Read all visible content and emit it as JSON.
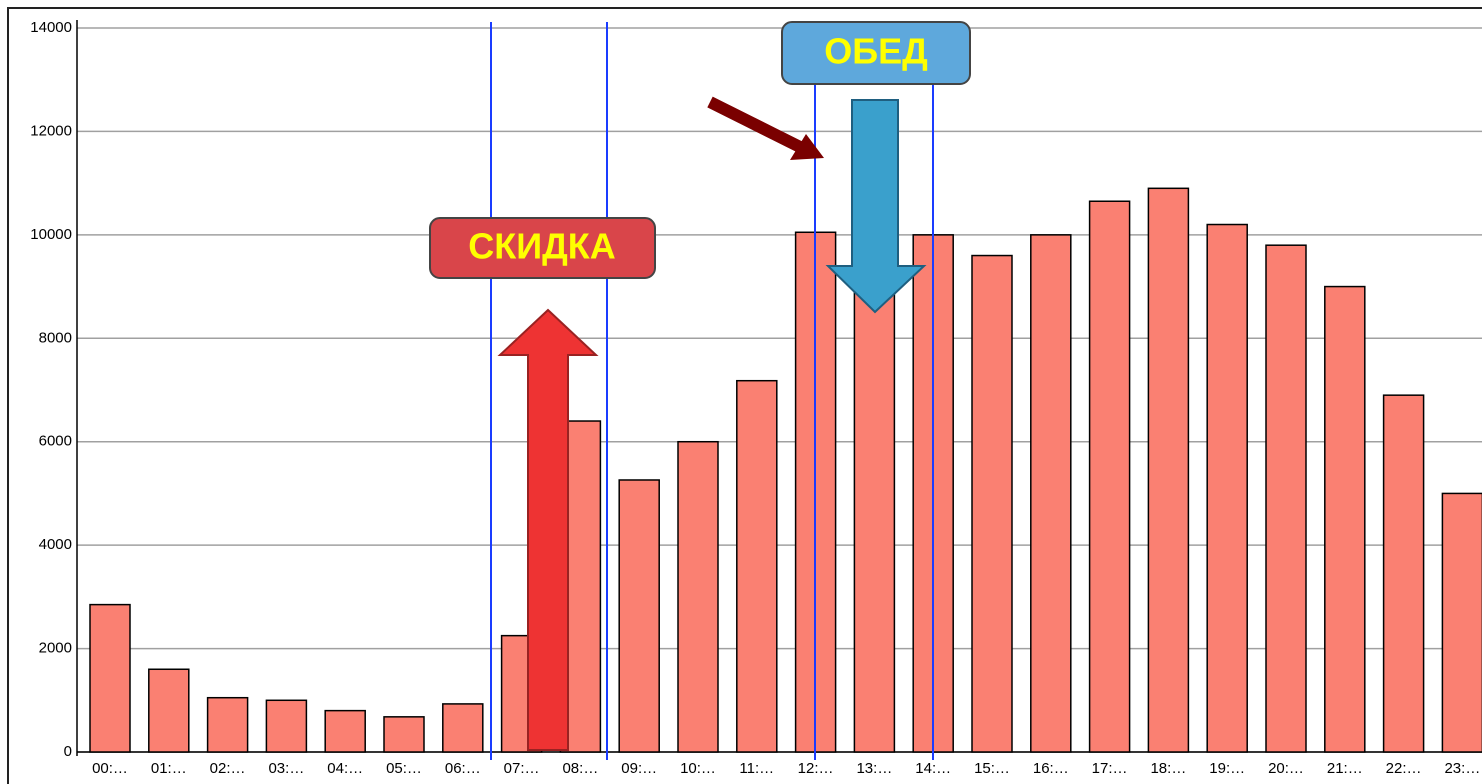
{
  "chart_data": {
    "type": "bar",
    "categories": [
      "00:…",
      "01:…",
      "02:…",
      "03:…",
      "04:…",
      "05:…",
      "06:…",
      "07:…",
      "08:…",
      "09:…",
      "10:…",
      "11:…",
      "12:…",
      "13:…",
      "14:…",
      "15:…",
      "16:…",
      "17:…",
      "18:…",
      "19:…",
      "20:…",
      "21:…",
      "22:…",
      "23:…"
    ],
    "values": [
      2850,
      1600,
      1050,
      1000,
      800,
      680,
      930,
      2250,
      6400,
      5260,
      6000,
      7180,
      10050,
      9500,
      10000,
      9600,
      10000,
      10650,
      10900,
      10200,
      9800,
      9000,
      6900,
      5000
    ],
    "color": "#fa8072",
    "ylim": [
      0,
      14000
    ],
    "yticks": [
      0,
      2000,
      4000,
      6000,
      8000,
      10000,
      12000,
      14000
    ],
    "grid": true,
    "annotations": [
      "СКИДКА",
      "ОБЕД"
    ]
  }
}
